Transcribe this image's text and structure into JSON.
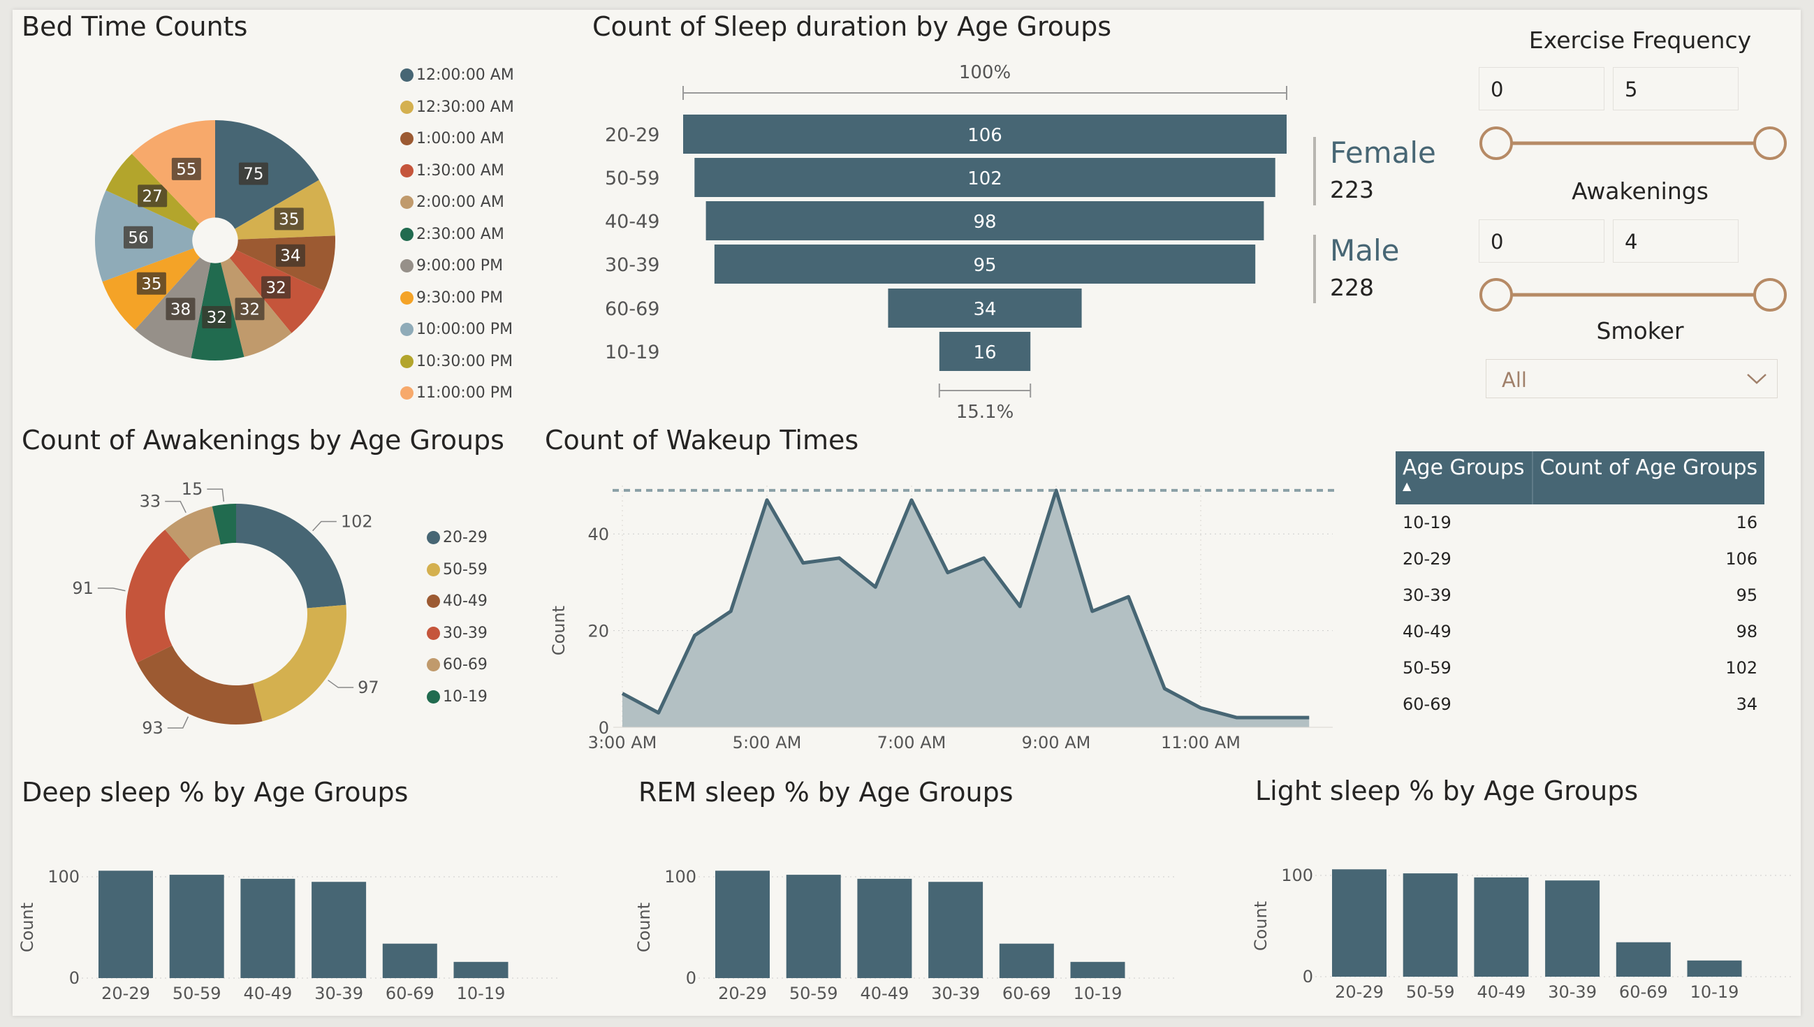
{
  "palette": [
    "#476674",
    "#d4b04f",
    "#9c5a32",
    "#c5553b",
    "#c09a6c",
    "#216b4f",
    "#969089",
    "#f4a327",
    "#8fabb8",
    "#b3a52c",
    "#f7a96b"
  ],
  "bed_time": {
    "title": "Bed Time Counts",
    "chart_data": {
      "type": "pie",
      "labels": [
        "12:00:00 AM",
        "12:30:00 AM",
        "1:00:00 AM",
        "1:30:00 AM",
        "2:00:00 AM",
        "2:30:00 AM",
        "9:00:00 PM",
        "9:30:00 PM",
        "10:00:00 PM",
        "10:30:00 PM",
        "11:00:00 PM"
      ],
      "values": [
        75,
        35,
        34,
        32,
        32,
        32,
        38,
        35,
        56,
        27,
        55
      ],
      "inner_radius_ratio": 0.19
    }
  },
  "sleep_duration": {
    "title": "Count of Sleep duration by Age Groups",
    "top_pct": "100%",
    "bottom_pct": "15.1%",
    "chart_data": {
      "type": "bar",
      "orientation": "funnel",
      "categories": [
        "20-29",
        "50-59",
        "40-49",
        "30-39",
        "60-69",
        "10-19"
      ],
      "values": [
        106,
        102,
        98,
        95,
        34,
        16
      ]
    }
  },
  "gender": [
    {
      "label": "Female",
      "value": "223"
    },
    {
      "label": "Male",
      "value": "228"
    }
  ],
  "slicers": {
    "exercise": {
      "title": "Exercise Frequency",
      "min": "0",
      "max": "5"
    },
    "awakenings": {
      "title": "Awakenings",
      "min": "0",
      "max": "4"
    },
    "smoker": {
      "title": "Smoker",
      "value": "All"
    },
    "accent": "#b68a65"
  },
  "awakenings": {
    "title": "Count of Awakenings by Age Groups",
    "chart_data": {
      "type": "pie",
      "labels": [
        "20-29",
        "50-59",
        "40-49",
        "30-39",
        "60-69",
        "10-19"
      ],
      "values": [
        102,
        97,
        93,
        91,
        33,
        15
      ],
      "donut": true
    }
  },
  "wakeup": {
    "title": "Count of Wakeup Times",
    "chart_data": {
      "type": "area",
      "x_ticks": [
        "3:00 AM",
        "5:00 AM",
        "7:00 AM",
        "9:00 AM",
        "11:00 AM"
      ],
      "ylabel": "Count",
      "y_ticks": [
        "0",
        "20",
        "40"
      ],
      "ylim": [
        0,
        50
      ],
      "max_line": 49,
      "x_hours": [
        3,
        3.5,
        4,
        4.5,
        5,
        5.5,
        6,
        6.5,
        7,
        7.5,
        8,
        8.5,
        9,
        9.5,
        10,
        10.5,
        11,
        11.5,
        12,
        12.5
      ],
      "values": [
        7,
        3,
        19,
        24,
        47,
        34,
        35,
        29,
        47,
        32,
        35,
        25,
        49,
        24,
        27,
        8,
        4,
        2,
        2,
        2
      ]
    }
  },
  "age_table": {
    "headers": [
      "Age Groups",
      "Count of Age Groups"
    ],
    "rows": [
      [
        "10-19",
        "16"
      ],
      [
        "20-29",
        "106"
      ],
      [
        "30-39",
        "95"
      ],
      [
        "40-49",
        "98"
      ],
      [
        "50-59",
        "102"
      ],
      [
        "60-69",
        "34"
      ]
    ]
  },
  "deep_sleep": {
    "title": "Deep sleep % by Age Groups",
    "chart_data": {
      "type": "bar",
      "categories": [
        "20-29",
        "50-59",
        "40-49",
        "30-39",
        "60-69",
        "10-19"
      ],
      "values": [
        106,
        102,
        98,
        95,
        34,
        16
      ],
      "ylabel": "Count",
      "y_ticks": [
        "0",
        "100"
      ]
    }
  },
  "rem_sleep": {
    "title": "REM sleep % by Age Groups",
    "chart_data": {
      "type": "bar",
      "categories": [
        "20-29",
        "50-59",
        "40-49",
        "30-39",
        "60-69",
        "10-19"
      ],
      "values": [
        106,
        102,
        98,
        95,
        34,
        16
      ],
      "ylabel": "Count",
      "y_ticks": [
        "0",
        "100"
      ]
    }
  },
  "light_sleep": {
    "title": "Light sleep % by Age Groups",
    "chart_data": {
      "type": "bar",
      "categories": [
        "20-29",
        "50-59",
        "40-49",
        "30-39",
        "60-69",
        "10-19"
      ],
      "values": [
        106,
        102,
        98,
        95,
        34,
        16
      ],
      "ylabel": "Count",
      "y_ticks": [
        "0",
        "100"
      ]
    }
  }
}
